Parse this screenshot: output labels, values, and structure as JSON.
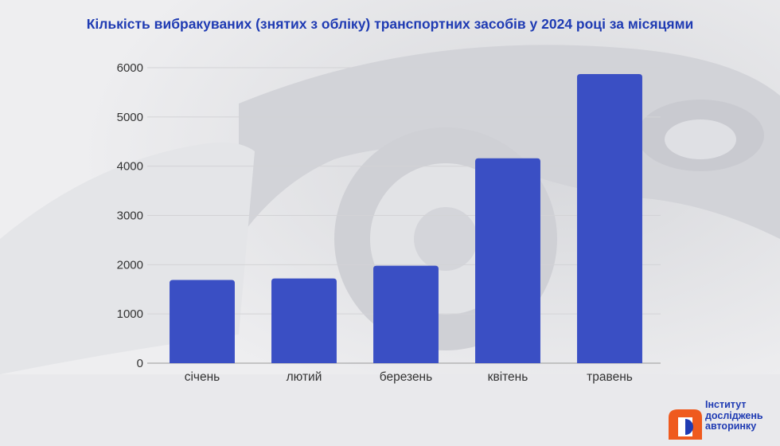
{
  "title": "Кількість вибракуваних (знятих з обліку) транспортних засобів у 2024 році за місяцями",
  "colors": {
    "bar": "#3a4fc4",
    "title": "#1f3bb3",
    "logo_orange": "#ef5a1e"
  },
  "logo": {
    "line1": "Інститут",
    "line2": "досліджень",
    "line3": "авторинку"
  },
  "chart_data": {
    "type": "bar",
    "title": "Кількість вибракуваних (знятих з обліку) транспортних засобів у 2024 році за місяцями",
    "categories": [
      "січень",
      "лютий",
      "березень",
      "квітень",
      "травень"
    ],
    "values": [
      1690,
      1720,
      1980,
      4160,
      5870
    ],
    "ylim": [
      0,
      6000
    ],
    "yticks": [
      0,
      1000,
      2000,
      3000,
      4000,
      5000,
      6000
    ],
    "xlabel": "",
    "ylabel": "",
    "grid": true,
    "legend": "none"
  }
}
